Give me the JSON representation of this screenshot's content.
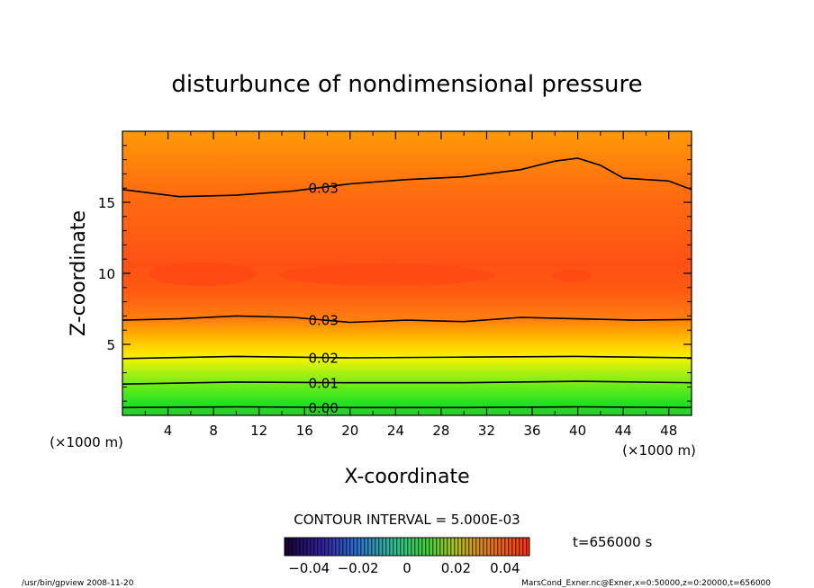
{
  "chart_data": {
    "type": "heatmap",
    "title": "disturbunce of nondimensional pressure",
    "xlabel": "X-coordinate",
    "ylabel": "Z-coordinate",
    "x_unit": "(×1000 m)",
    "y_unit": "(×1000 m)",
    "xlim": [
      0,
      50
    ],
    "ylim": [
      0,
      20
    ],
    "x_ticks": [
      "4",
      "8",
      "12",
      "16",
      "20",
      "24",
      "28",
      "32",
      "36",
      "40",
      "44",
      "48"
    ],
    "x_tick_values": [
      4,
      8,
      12,
      16,
      20,
      24,
      28,
      32,
      36,
      40,
      44,
      48
    ],
    "y_ticks": [
      "5",
      "10",
      "15"
    ],
    "y_tick_values": [
      5,
      10,
      15
    ],
    "contour_lines": [
      {
        "label": "0.00",
        "label_x": 17.5,
        "points": [
          [
            0,
            0.55
          ],
          [
            10,
            0.6
          ],
          [
            20,
            0.55
          ],
          [
            30,
            0.55
          ],
          [
            40,
            0.6
          ],
          [
            50,
            0.55
          ]
        ]
      },
      {
        "label": "0.01",
        "label_x": 17.5,
        "points": [
          [
            0,
            2.2
          ],
          [
            10,
            2.35
          ],
          [
            20,
            2.3
          ],
          [
            30,
            2.3
          ],
          [
            40,
            2.4
          ],
          [
            50,
            2.3
          ]
        ]
      },
      {
        "label": "0.02",
        "label_x": 17.5,
        "points": [
          [
            0,
            4.0
          ],
          [
            10,
            4.15
          ],
          [
            20,
            4.05
          ],
          [
            30,
            4.1
          ],
          [
            40,
            4.15
          ],
          [
            50,
            4.05
          ]
        ]
      },
      {
        "label": "0.03",
        "label_x": 17.5,
        "points": [
          [
            0,
            6.7
          ],
          [
            5,
            6.8
          ],
          [
            10,
            7.0
          ],
          [
            15,
            6.9
          ],
          [
            20,
            6.55
          ],
          [
            25,
            6.7
          ],
          [
            30,
            6.6
          ],
          [
            35,
            6.9
          ],
          [
            40,
            6.8
          ],
          [
            45,
            6.7
          ],
          [
            50,
            6.75
          ]
        ]
      },
      {
        "label": "0.03",
        "label_x": 17.5,
        "points": [
          [
            0,
            15.9
          ],
          [
            5,
            15.4
          ],
          [
            10,
            15.5
          ],
          [
            15,
            15.8
          ],
          [
            20,
            16.3
          ],
          [
            25,
            16.6
          ],
          [
            30,
            16.8
          ],
          [
            35,
            17.3
          ],
          [
            38,
            17.9
          ],
          [
            40,
            18.1
          ],
          [
            42,
            17.6
          ],
          [
            44,
            16.7
          ],
          [
            48,
            16.5
          ],
          [
            50,
            15.9
          ]
        ]
      }
    ],
    "contour_interval": "CONTOUR INTERVAL = 5.000E-03",
    "colorbar": {
      "ticks": [
        "−0.04",
        "−0.02",
        "0",
        "0.02",
        "0.04"
      ],
      "tick_values": [
        -0.04,
        -0.02,
        0,
        0.02,
        0.04
      ],
      "range": [
        -0.05,
        0.05
      ]
    },
    "time_label": "t=656000 s"
  },
  "footer": {
    "left": "/usr/bin/gpview  2008-11-20",
    "right": "MarsCond_Exner.nc@Exner,x=0:50000,z=0:20000,t=656000"
  },
  "colors": {
    "fill_bottom": "#20e020",
    "fill_mid": "#f5f500",
    "fill_high": "#ff5a10",
    "fill_top": "#ff9900"
  }
}
